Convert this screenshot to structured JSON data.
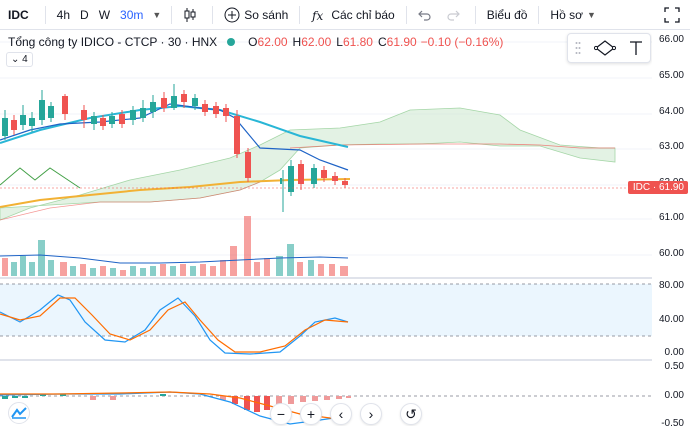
{
  "toolbar": {
    "symbol": "IDC",
    "intervals": [
      "4h",
      "D",
      "W",
      "30m"
    ],
    "active_interval": "30m",
    "compare_label": "So sánh",
    "indicators_label": "Các chỉ báo",
    "chart_label": "Biểu đồ",
    "profile_label": "Hồ sơ"
  },
  "legend": {
    "title": "Tổng công ty IDICO - CTCP · 30 · HNX",
    "o_label": "O",
    "o_value": "62.00",
    "h_label": "H",
    "h_value": "62.00",
    "l_label": "L",
    "l_value": "61.80",
    "c_label": "C",
    "c_value": "61.90",
    "change": "−0.10 (−0.16%)",
    "collapsed_count": "4"
  },
  "axis": {
    "price_labels": [
      "66.00",
      "65.00",
      "64.00",
      "63.00",
      "62.00",
      "61.00",
      "60.00"
    ],
    "stoch_labels": [
      "80.00",
      "40.00",
      "0.00"
    ],
    "macd_labels": [
      "0.50",
      "0.00",
      "-0.50"
    ],
    "price_tag_symbol": "IDC",
    "price_tag_value": "61.90"
  },
  "colors": {
    "up": "#26a69a",
    "down": "#ef5350",
    "accent": "#2962ff",
    "cloud": "#c8e6c9"
  },
  "icons": {
    "candles": "candle-style-icon",
    "compare": "plus-circle-icon",
    "indicators": "fx-icon",
    "undo": "undo-icon",
    "redo": "redo-icon",
    "fullscreen": "fullscreen-icon"
  }
}
